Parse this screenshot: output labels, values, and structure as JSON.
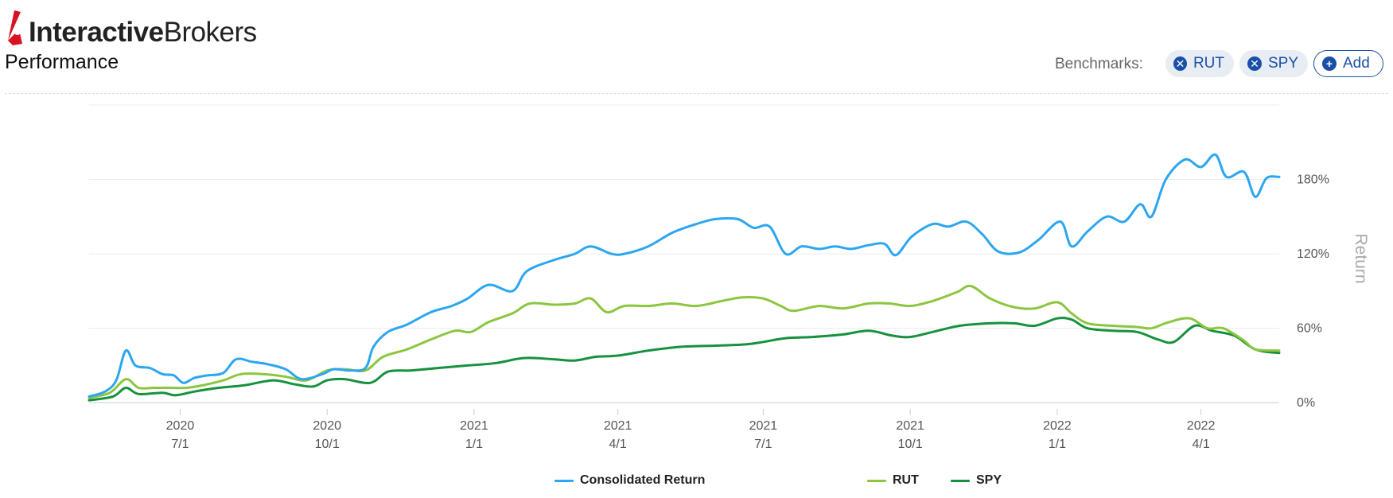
{
  "brand": {
    "bold": "Interactive",
    "light": "Brokers"
  },
  "page": {
    "title": "Performance"
  },
  "benchmarks": {
    "label": "Benchmarks:",
    "chips": [
      {
        "label": "RUT",
        "icon": "close-circle-icon"
      },
      {
        "label": "SPY",
        "icon": "close-circle-icon"
      },
      {
        "label": "Add",
        "icon": "plus-circle-icon"
      }
    ]
  },
  "colors": {
    "consolidated": "#2ba6f0",
    "rut": "#8cc63f",
    "spy": "#16913e",
    "brand_red": "#d81222"
  },
  "chart_data": {
    "type": "line",
    "ylabel": "Return",
    "y_ticks": [
      "0%",
      "60%",
      "120%",
      "180%"
    ],
    "y_tick_values": [
      0,
      60,
      120,
      180
    ],
    "ylim": [
      -5,
      240
    ],
    "x_ticks": [
      {
        "year": "2020",
        "day": "7/1",
        "date": "2020-07-01"
      },
      {
        "year": "2020",
        "day": "10/1",
        "date": "2020-10-01"
      },
      {
        "year": "2021",
        "day": "1/1",
        "date": "2021-01-01"
      },
      {
        "year": "2021",
        "day": "4/1",
        "date": "2021-04-01"
      },
      {
        "year": "2021",
        "day": "7/1",
        "date": "2021-07-01"
      },
      {
        "year": "2021",
        "day": "10/1",
        "date": "2021-10-01"
      },
      {
        "year": "2022",
        "day": "1/1",
        "date": "2022-01-01"
      },
      {
        "year": "2022",
        "day": "4/1",
        "date": "2022-04-01"
      }
    ],
    "xlim": [
      "2020-05-05",
      "2022-05-20"
    ],
    "grid": true,
    "legend_position": "bottom-center",
    "series": [
      {
        "name": "Consolidated Return",
        "points": [
          [
            "2020-05-05",
            5
          ],
          [
            "2020-05-15",
            9
          ],
          [
            "2020-05-22",
            18
          ],
          [
            "2020-05-28",
            42
          ],
          [
            "2020-06-03",
            30
          ],
          [
            "2020-06-12",
            28
          ],
          [
            "2020-06-20",
            23
          ],
          [
            "2020-06-27",
            22
          ],
          [
            "2020-07-03",
            16
          ],
          [
            "2020-07-10",
            20
          ],
          [
            "2020-07-18",
            22
          ],
          [
            "2020-07-28",
            24
          ],
          [
            "2020-08-05",
            35
          ],
          [
            "2020-08-15",
            33
          ],
          [
            "2020-08-25",
            31
          ],
          [
            "2020-09-05",
            27
          ],
          [
            "2020-09-15",
            19
          ],
          [
            "2020-09-28",
            23
          ],
          [
            "2020-10-05",
            27
          ],
          [
            "2020-10-15",
            26
          ],
          [
            "2020-10-25",
            28
          ],
          [
            "2020-10-30",
            45
          ],
          [
            "2020-11-08",
            57
          ],
          [
            "2020-11-20",
            63
          ],
          [
            "2020-12-05",
            73
          ],
          [
            "2020-12-18",
            78
          ],
          [
            "2020-12-28",
            84
          ],
          [
            "2021-01-10",
            95
          ],
          [
            "2021-01-25",
            90
          ],
          [
            "2021-02-03",
            106
          ],
          [
            "2021-02-20",
            115
          ],
          [
            "2021-03-05",
            120
          ],
          [
            "2021-03-15",
            126
          ],
          [
            "2021-03-28",
            120
          ],
          [
            "2021-04-05",
            120
          ],
          [
            "2021-04-20",
            126
          ],
          [
            "2021-05-05",
            137
          ],
          [
            "2021-05-20",
            144
          ],
          [
            "2021-06-01",
            148
          ],
          [
            "2021-06-15",
            148
          ],
          [
            "2021-06-25",
            141
          ],
          [
            "2021-07-05",
            142
          ],
          [
            "2021-07-15",
            120
          ],
          [
            "2021-07-25",
            126
          ],
          [
            "2021-08-05",
            124
          ],
          [
            "2021-08-15",
            126
          ],
          [
            "2021-08-25",
            124
          ],
          [
            "2021-09-05",
            127
          ],
          [
            "2021-09-15",
            128
          ],
          [
            "2021-09-22",
            119
          ],
          [
            "2021-10-02",
            134
          ],
          [
            "2021-10-15",
            144
          ],
          [
            "2021-10-25",
            142
          ],
          [
            "2021-11-05",
            146
          ],
          [
            "2021-11-15",
            136
          ],
          [
            "2021-11-25",
            122
          ],
          [
            "2021-12-08",
            121
          ],
          [
            "2021-12-20",
            131
          ],
          [
            "2022-01-03",
            146
          ],
          [
            "2022-01-10",
            126
          ],
          [
            "2022-01-20",
            138
          ],
          [
            "2022-02-01",
            150
          ],
          [
            "2022-02-12",
            146
          ],
          [
            "2022-02-22",
            160
          ],
          [
            "2022-03-01",
            150
          ],
          [
            "2022-03-10",
            180
          ],
          [
            "2022-03-22",
            196
          ],
          [
            "2022-04-01",
            190
          ],
          [
            "2022-04-10",
            200
          ],
          [
            "2022-04-17",
            182
          ],
          [
            "2022-04-28",
            186
          ],
          [
            "2022-05-05",
            166
          ],
          [
            "2022-05-12",
            181
          ],
          [
            "2022-05-20",
            182
          ]
        ]
      },
      {
        "name": "RUT",
        "points": [
          [
            "2020-05-05",
            4
          ],
          [
            "2020-05-18",
            8
          ],
          [
            "2020-05-28",
            19
          ],
          [
            "2020-06-05",
            12
          ],
          [
            "2020-06-15",
            12
          ],
          [
            "2020-06-25",
            12
          ],
          [
            "2020-07-05",
            12
          ],
          [
            "2020-07-15",
            14
          ],
          [
            "2020-07-28",
            18
          ],
          [
            "2020-08-08",
            23
          ],
          [
            "2020-08-22",
            23
          ],
          [
            "2020-09-05",
            21
          ],
          [
            "2020-09-18",
            18
          ],
          [
            "2020-10-01",
            26
          ],
          [
            "2020-10-12",
            27
          ],
          [
            "2020-10-25",
            26
          ],
          [
            "2020-11-05",
            37
          ],
          [
            "2020-11-20",
            43
          ],
          [
            "2020-12-05",
            51
          ],
          [
            "2020-12-20",
            58
          ],
          [
            "2020-12-30",
            57
          ],
          [
            "2021-01-10",
            65
          ],
          [
            "2021-01-25",
            72
          ],
          [
            "2021-02-05",
            80
          ],
          [
            "2021-02-20",
            79
          ],
          [
            "2021-03-05",
            80
          ],
          [
            "2021-03-15",
            84
          ],
          [
            "2021-03-25",
            73
          ],
          [
            "2021-04-05",
            78
          ],
          [
            "2021-04-20",
            78
          ],
          [
            "2021-05-05",
            80
          ],
          [
            "2021-05-20",
            78
          ],
          [
            "2021-06-05",
            82
          ],
          [
            "2021-06-18",
            85
          ],
          [
            "2021-07-01",
            84
          ],
          [
            "2021-07-12",
            78
          ],
          [
            "2021-07-20",
            74
          ],
          [
            "2021-08-05",
            78
          ],
          [
            "2021-08-20",
            76
          ],
          [
            "2021-09-05",
            80
          ],
          [
            "2021-09-18",
            80
          ],
          [
            "2021-10-01",
            78
          ],
          [
            "2021-10-15",
            82
          ],
          [
            "2021-10-30",
            89
          ],
          [
            "2021-11-08",
            94
          ],
          [
            "2021-11-20",
            84
          ],
          [
            "2021-12-05",
            77
          ],
          [
            "2021-12-18",
            76
          ],
          [
            "2022-01-01",
            81
          ],
          [
            "2022-01-10",
            72
          ],
          [
            "2022-01-20",
            64
          ],
          [
            "2022-02-05",
            62
          ],
          [
            "2022-02-20",
            61
          ],
          [
            "2022-03-01",
            60
          ],
          [
            "2022-03-12",
            65
          ],
          [
            "2022-03-25",
            68
          ],
          [
            "2022-04-05",
            60
          ],
          [
            "2022-04-15",
            60
          ],
          [
            "2022-04-28",
            50
          ],
          [
            "2022-05-05",
            43
          ],
          [
            "2022-05-20",
            42
          ]
        ]
      },
      {
        "name": "SPY",
        "points": [
          [
            "2020-05-05",
            2
          ],
          [
            "2020-05-20",
            5
          ],
          [
            "2020-05-28",
            12
          ],
          [
            "2020-06-05",
            7
          ],
          [
            "2020-06-20",
            8
          ],
          [
            "2020-06-28",
            6
          ],
          [
            "2020-07-10",
            9
          ],
          [
            "2020-07-25",
            12
          ],
          [
            "2020-08-10",
            14
          ],
          [
            "2020-08-28",
            18
          ],
          [
            "2020-09-10",
            15
          ],
          [
            "2020-09-22",
            13
          ],
          [
            "2020-10-01",
            18
          ],
          [
            "2020-10-12",
            19
          ],
          [
            "2020-10-28",
            16
          ],
          [
            "2020-11-08",
            25
          ],
          [
            "2020-11-22",
            26
          ],
          [
            "2020-12-10",
            28
          ],
          [
            "2020-12-28",
            30
          ],
          [
            "2021-01-15",
            32
          ],
          [
            "2021-02-01",
            36
          ],
          [
            "2021-02-20",
            35
          ],
          [
            "2021-03-05",
            34
          ],
          [
            "2021-03-18",
            37
          ],
          [
            "2021-04-01",
            38
          ],
          [
            "2021-04-20",
            42
          ],
          [
            "2021-05-10",
            45
          ],
          [
            "2021-06-01",
            46
          ],
          [
            "2021-06-20",
            47
          ],
          [
            "2021-07-01",
            49
          ],
          [
            "2021-07-15",
            52
          ],
          [
            "2021-08-01",
            53
          ],
          [
            "2021-08-20",
            55
          ],
          [
            "2021-09-05",
            58
          ],
          [
            "2021-09-20",
            54
          ],
          [
            "2021-10-01",
            53
          ],
          [
            "2021-10-15",
            57
          ],
          [
            "2021-11-01",
            62
          ],
          [
            "2021-11-20",
            64
          ],
          [
            "2021-12-05",
            64
          ],
          [
            "2021-12-18",
            62
          ],
          [
            "2022-01-01",
            68
          ],
          [
            "2022-01-10",
            67
          ],
          [
            "2022-01-20",
            60
          ],
          [
            "2022-02-05",
            58
          ],
          [
            "2022-02-20",
            57
          ],
          [
            "2022-03-05",
            51
          ],
          [
            "2022-03-15",
            49
          ],
          [
            "2022-03-28",
            62
          ],
          [
            "2022-04-08",
            58
          ],
          [
            "2022-04-22",
            54
          ],
          [
            "2022-05-05",
            43
          ],
          [
            "2022-05-20",
            40
          ]
        ]
      }
    ]
  }
}
